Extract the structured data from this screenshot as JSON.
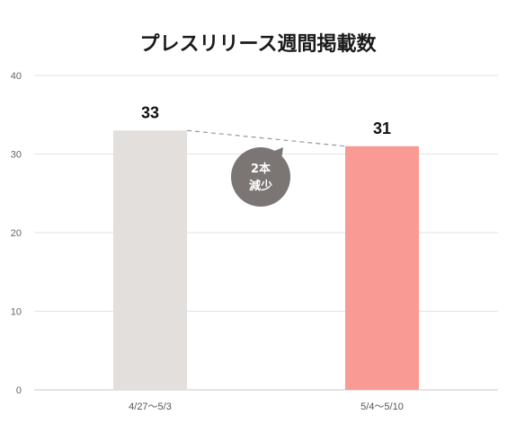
{
  "chart_data": {
    "type": "bar",
    "title": "プレスリリース週間掲載数",
    "categories": [
      "4/27〜5/3",
      "5/4〜5/10"
    ],
    "values": [
      33,
      31
    ],
    "data_labels": [
      "33",
      "31"
    ],
    "ylim": [
      0,
      40
    ],
    "yticks": [
      0,
      10,
      20,
      30,
      40
    ],
    "ytick_labels": [
      "0",
      "10",
      "20",
      "30",
      "40"
    ],
    "grid": true,
    "bar_colors": [
      "#e2dfdd",
      "#f99b94"
    ],
    "annotation": {
      "line1": "2本",
      "line2": "減少",
      "color": "#7b7574",
      "connector": "dashed"
    }
  }
}
